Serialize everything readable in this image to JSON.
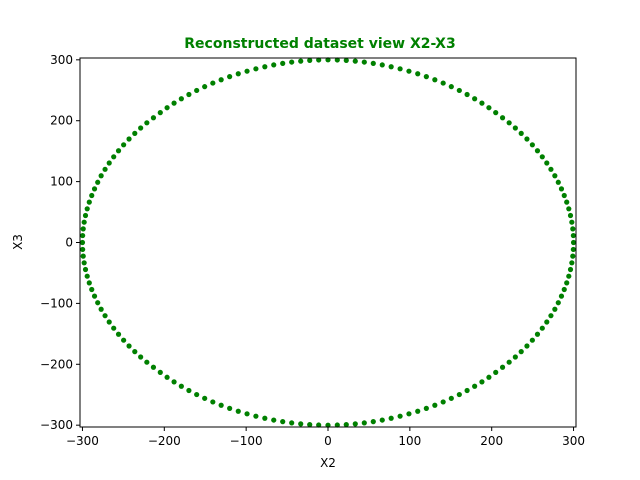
{
  "chart_data": {
    "type": "scatter",
    "title": "Reconstructed dataset view X2-X3",
    "xlabel": "X2",
    "ylabel": "X3",
    "xlim": [
      -303,
      303
    ],
    "ylim": [
      -303,
      303
    ],
    "xticks": [
      -300,
      -200,
      -100,
      0,
      100,
      200,
      300
    ],
    "yticks": [
      -300,
      -200,
      -100,
      0,
      100,
      200,
      300
    ],
    "xtick_labels": [
      "−300",
      "−200",
      "−100",
      "0",
      "100",
      "200",
      "300"
    ],
    "ytick_labels": [
      "−300",
      "−200",
      "−100",
      "0",
      "100",
      "200",
      "300"
    ],
    "grid": false,
    "legend": false,
    "colors": {
      "marker": "#008000",
      "title": "#008000"
    },
    "series": [
      {
        "x": [
          300.0,
          299.77,
          299.07,
          297.9,
          296.28,
          294.19,
          291.65,
          288.66,
          285.23,
          281.36,
          277.16,
          272.37,
          267.3,
          261.81,
          255.93,
          249.69,
          243.06,
          236.06,
          228.9,
          221.34,
          213.27,
          204.9,
          196.6,
          188.07,
          179.17,
          169.95,
          160.45,
          150.67,
          140.73,
          130.54,
          120.16,
          109.63,
          98.9,
          88.09,
          77.18,
          66.29,
          55.34,
          44.36,
          33.33,
          22.34,
          11.39,
          0.0,
          -11.39,
          -22.34,
          -33.33,
          -44.36,
          -55.34,
          -66.29,
          -77.18,
          -88.09,
          -98.9,
          -109.63,
          -120.16,
          -130.54,
          -140.73,
          -150.67,
          -160.45,
          -169.95,
          -179.17,
          -188.07,
          -196.6,
          -204.9,
          -213.27,
          -221.34,
          -228.9,
          -236.06,
          -243.06,
          -249.69,
          -255.93,
          -261.81,
          -267.3,
          -272.37,
          -277.16,
          -281.36,
          -285.23,
          -288.66,
          -291.65,
          -294.19,
          -296.28,
          -297.9,
          -299.07,
          -299.77,
          -300.0,
          -299.77,
          -299.07,
          -297.9,
          -296.28,
          -294.19,
          -291.65,
          -288.66,
          -285.23,
          -281.36,
          -277.16,
          -272.37,
          -267.3,
          -261.81,
          -255.93,
          -249.69,
          -243.06,
          -236.06,
          -228.9,
          -221.34,
          -213.27,
          -204.9,
          -196.6,
          -188.07,
          -179.17,
          -169.95,
          -160.45,
          -150.67,
          -140.73,
          -130.54,
          -120.16,
          -109.63,
          -98.9,
          -88.09,
          -77.18,
          -66.29,
          -55.34,
          -44.36,
          -33.33,
          -22.34,
          -11.39,
          0.0,
          11.39,
          22.34,
          33.33,
          44.36,
          55.34,
          66.29,
          77.18,
          88.09,
          98.9,
          109.63,
          120.16,
          130.54,
          140.73,
          150.67,
          160.45,
          169.95,
          179.17,
          188.07,
          196.6,
          204.9,
          213.27,
          221.34,
          228.9,
          236.06,
          243.06,
          249.69,
          255.93,
          261.81,
          267.3,
          272.37,
          277.16,
          281.36,
          285.23,
          288.66,
          291.65,
          294.19,
          296.28,
          297.9,
          299.07,
          299.77
        ],
        "y": [
          0.0,
          11.39,
          22.34,
          33.33,
          44.36,
          55.34,
          66.29,
          77.18,
          88.09,
          98.9,
          109.63,
          120.16,
          130.54,
          140.73,
          150.67,
          160.45,
          169.95,
          179.17,
          188.07,
          196.6,
          204.9,
          213.27,
          221.34,
          228.9,
          236.06,
          243.06,
          249.69,
          255.93,
          261.81,
          267.3,
          272.37,
          277.16,
          281.36,
          285.23,
          288.66,
          291.65,
          294.19,
          296.28,
          297.9,
          299.07,
          299.77,
          300.0,
          299.77,
          299.07,
          297.9,
          296.28,
          294.19,
          291.65,
          288.66,
          285.23,
          281.36,
          277.16,
          272.37,
          267.3,
          261.81,
          255.93,
          249.69,
          243.06,
          236.06,
          228.9,
          221.34,
          213.27,
          204.9,
          196.6,
          188.07,
          179.17,
          169.95,
          160.45,
          150.67,
          140.73,
          130.54,
          120.16,
          109.63,
          98.9,
          88.09,
          77.18,
          66.29,
          55.34,
          44.36,
          33.33,
          22.34,
          11.39,
          0.0,
          -11.39,
          -22.34,
          -33.33,
          -44.36,
          -55.34,
          -66.29,
          -77.18,
          -88.09,
          -98.9,
          -109.63,
          -120.16,
          -130.54,
          -140.73,
          -150.67,
          -160.45,
          -169.95,
          -179.17,
          -188.07,
          -196.6,
          -204.9,
          -213.27,
          -221.34,
          -228.9,
          -236.06,
          -243.06,
          -249.69,
          -255.93,
          -261.81,
          -267.3,
          -272.37,
          -277.16,
          -281.36,
          -285.23,
          -288.66,
          -291.65,
          -294.19,
          -296.28,
          -297.9,
          -299.07,
          -299.77,
          -300.0,
          -299.77,
          -299.07,
          -297.9,
          -296.28,
          -294.19,
          -291.65,
          -288.66,
          -285.23,
          -281.36,
          -277.16,
          -272.37,
          -267.3,
          -261.81,
          -255.93,
          -249.69,
          -243.06,
          -236.06,
          -228.9,
          -221.34,
          -213.27,
          -204.9,
          -196.6,
          -188.07,
          -179.17,
          -169.95,
          -160.45,
          -150.67,
          -140.73,
          -130.54,
          -120.16,
          -109.63,
          -98.9,
          -88.09,
          -77.18,
          -66.29,
          -55.34,
          -44.36,
          -33.33,
          -22.34,
          -11.39
        ]
      }
    ]
  }
}
